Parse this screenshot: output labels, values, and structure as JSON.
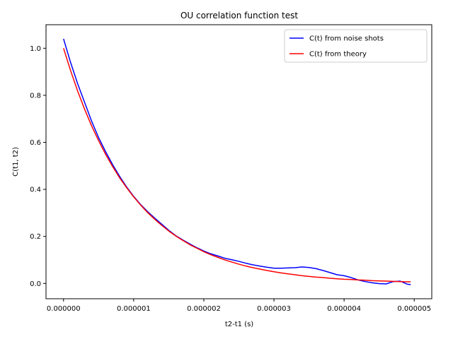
{
  "chart_data": {
    "type": "line",
    "title": "OU correlation function test",
    "xlabel": "t2-t1 (s)",
    "ylabel": "C(t1, t2)",
    "xlim": [
      -2.5e-07,
      5.25e-06
    ],
    "ylim": [
      -0.065,
      1.1
    ],
    "xticks": [
      0,
      1e-06,
      2e-06,
      3e-06,
      4e-06,
      5e-06
    ],
    "xtick_labels": [
      "0.000000",
      "0.000001",
      "0.000002",
      "0.000003",
      "0.000004",
      "0.000005"
    ],
    "yticks": [
      0.0,
      0.2,
      0.4,
      0.6,
      0.8,
      1.0
    ],
    "ytick_labels": [
      "0.0",
      "0.2",
      "0.4",
      "0.6",
      "0.8",
      "1.0"
    ],
    "grid": false,
    "legend": "top-right",
    "series": [
      {
        "name": "C(t) from noise shots",
        "color": "#0000ff",
        "x": [
          0,
          1e-07,
          2e-07,
          3e-07,
          4e-07,
          5e-07,
          6e-07,
          7e-07,
          8e-07,
          9e-07,
          1e-06,
          1.1e-06,
          1.2e-06,
          1.3e-06,
          1.4e-06,
          1.5e-06,
          1.6e-06,
          1.7e-06,
          1.8e-06,
          1.9e-06,
          2e-06,
          2.1e-06,
          2.2e-06,
          2.3e-06,
          2.4e-06,
          2.5e-06,
          2.6e-06,
          2.7e-06,
          2.8e-06,
          2.9e-06,
          3e-06,
          3.1e-06,
          3.2e-06,
          3.3e-06,
          3.4e-06,
          3.5e-06,
          3.6e-06,
          3.7e-06,
          3.8e-06,
          3.9e-06,
          4e-06,
          4.1e-06,
          4.2e-06,
          4.3e-06,
          4.4e-06,
          4.5e-06,
          4.6e-06,
          4.7e-06,
          4.8e-06,
          4.9e-06,
          4.95e-06
        ],
        "y": [
          1.04,
          0.94,
          0.85,
          0.77,
          0.69,
          0.62,
          0.56,
          0.505,
          0.455,
          0.41,
          0.37,
          0.335,
          0.305,
          0.278,
          0.252,
          0.226,
          0.203,
          0.185,
          0.168,
          0.152,
          0.138,
          0.126,
          0.117,
          0.107,
          0.101,
          0.094,
          0.086,
          0.079,
          0.074,
          0.069,
          0.065,
          0.065,
          0.066,
          0.067,
          0.07,
          0.068,
          0.063,
          0.055,
          0.046,
          0.037,
          0.033,
          0.025,
          0.015,
          0.008,
          0.003,
          -0.001,
          -0.002,
          0.008,
          0.01,
          -0.003,
          -0.005
        ]
      },
      {
        "name": "C(t) from theory",
        "color": "#ff0000",
        "x": [
          0,
          1e-07,
          2e-07,
          3e-07,
          4e-07,
          5e-07,
          6e-07,
          7e-07,
          8e-07,
          9e-07,
          1e-06,
          1.1e-06,
          1.2e-06,
          1.3e-06,
          1.4e-06,
          1.5e-06,
          1.6e-06,
          1.7e-06,
          1.8e-06,
          1.9e-06,
          2e-06,
          2.1e-06,
          2.2e-06,
          2.3e-06,
          2.4e-06,
          2.5e-06,
          2.6e-06,
          2.7e-06,
          2.8e-06,
          2.9e-06,
          3e-06,
          3.1e-06,
          3.2e-06,
          3.3e-06,
          3.4e-06,
          3.5e-06,
          3.6e-06,
          3.7e-06,
          3.8e-06,
          3.9e-06,
          4e-06,
          4.1e-06,
          4.2e-06,
          4.3e-06,
          4.4e-06,
          4.5e-06,
          4.6e-06,
          4.7e-06,
          4.8e-06,
          4.9e-06,
          4.95e-06
        ],
        "y": [
          1.0,
          0.905,
          0.819,
          0.741,
          0.67,
          0.607,
          0.549,
          0.497,
          0.449,
          0.407,
          0.368,
          0.333,
          0.301,
          0.273,
          0.247,
          0.223,
          0.202,
          0.183,
          0.165,
          0.15,
          0.135,
          0.122,
          0.111,
          0.1,
          0.091,
          0.082,
          0.074,
          0.067,
          0.061,
          0.055,
          0.05,
          0.045,
          0.041,
          0.037,
          0.033,
          0.03,
          0.027,
          0.025,
          0.022,
          0.02,
          0.018,
          0.017,
          0.015,
          0.014,
          0.012,
          0.011,
          0.01,
          0.009,
          0.008,
          0.007,
          0.007
        ]
      }
    ]
  }
}
